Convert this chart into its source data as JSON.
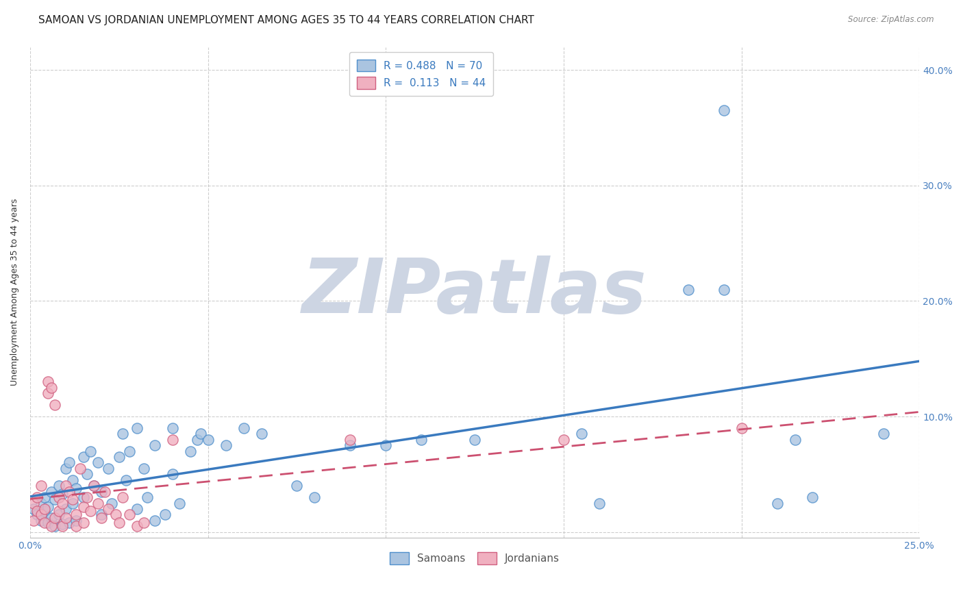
{
  "title": "SAMOAN VS JORDANIAN UNEMPLOYMENT AMONG AGES 35 TO 44 YEARS CORRELATION CHART",
  "source": "Source: ZipAtlas.com",
  "ylabel": "Unemployment Among Ages 35 to 44 years",
  "xlabel": "",
  "xlim": [
    0.0,
    0.25
  ],
  "ylim": [
    -0.005,
    0.42
  ],
  "xticks": [
    0.0,
    0.05,
    0.1,
    0.15,
    0.2,
    0.25
  ],
  "yticks": [
    0.0,
    0.1,
    0.2,
    0.3,
    0.4
  ],
  "background_color": "#ffffff",
  "grid_color": "#c8c8c8",
  "watermark": "ZIPatlas",
  "watermark_color": "#cdd5e3",
  "samoan_color": "#aac4e0",
  "jordanian_color": "#f0b0c0",
  "samoan_edge_color": "#5090cc",
  "jordanian_edge_color": "#d06080",
  "samoan_line_color": "#3a7abf",
  "jordanian_line_color": "#cc5070",
  "legend_R_color": "#3a7abf",
  "R_samoan": 0.488,
  "N_samoan": 70,
  "R_jordanian": 0.113,
  "N_jordanian": 44,
  "samoan_scatter": [
    [
      0.001,
      0.02
    ],
    [
      0.002,
      0.015
    ],
    [
      0.003,
      0.025
    ],
    [
      0.003,
      0.01
    ],
    [
      0.004,
      0.03
    ],
    [
      0.004,
      0.018
    ],
    [
      0.005,
      0.022
    ],
    [
      0.005,
      0.008
    ],
    [
      0.006,
      0.035
    ],
    [
      0.006,
      0.012
    ],
    [
      0.007,
      0.028
    ],
    [
      0.007,
      0.005
    ],
    [
      0.008,
      0.04
    ],
    [
      0.008,
      0.015
    ],
    [
      0.009,
      0.033
    ],
    [
      0.009,
      0.007
    ],
    [
      0.01,
      0.055
    ],
    [
      0.01,
      0.02
    ],
    [
      0.011,
      0.06
    ],
    [
      0.011,
      0.008
    ],
    [
      0.012,
      0.045
    ],
    [
      0.012,
      0.025
    ],
    [
      0.013,
      0.038
    ],
    [
      0.013,
      0.01
    ],
    [
      0.015,
      0.065
    ],
    [
      0.015,
      0.03
    ],
    [
      0.016,
      0.05
    ],
    [
      0.017,
      0.07
    ],
    [
      0.018,
      0.04
    ],
    [
      0.019,
      0.06
    ],
    [
      0.02,
      0.035
    ],
    [
      0.02,
      0.015
    ],
    [
      0.022,
      0.055
    ],
    [
      0.023,
      0.025
    ],
    [
      0.025,
      0.065
    ],
    [
      0.026,
      0.085
    ],
    [
      0.027,
      0.045
    ],
    [
      0.028,
      0.07
    ],
    [
      0.03,
      0.09
    ],
    [
      0.03,
      0.02
    ],
    [
      0.032,
      0.055
    ],
    [
      0.033,
      0.03
    ],
    [
      0.035,
      0.075
    ],
    [
      0.035,
      0.01
    ],
    [
      0.038,
      0.015
    ],
    [
      0.04,
      0.09
    ],
    [
      0.04,
      0.05
    ],
    [
      0.042,
      0.025
    ],
    [
      0.045,
      0.07
    ],
    [
      0.047,
      0.08
    ],
    [
      0.048,
      0.085
    ],
    [
      0.05,
      0.08
    ],
    [
      0.055,
      0.075
    ],
    [
      0.06,
      0.09
    ],
    [
      0.065,
      0.085
    ],
    [
      0.075,
      0.04
    ],
    [
      0.08,
      0.03
    ],
    [
      0.09,
      0.075
    ],
    [
      0.1,
      0.075
    ],
    [
      0.11,
      0.08
    ],
    [
      0.125,
      0.08
    ],
    [
      0.155,
      0.085
    ],
    [
      0.16,
      0.025
    ],
    [
      0.185,
      0.21
    ],
    [
      0.195,
      0.21
    ],
    [
      0.195,
      0.365
    ],
    [
      0.21,
      0.025
    ],
    [
      0.215,
      0.08
    ],
    [
      0.22,
      0.03
    ],
    [
      0.24,
      0.085
    ]
  ],
  "jordanian_scatter": [
    [
      0.001,
      0.01
    ],
    [
      0.001,
      0.025
    ],
    [
      0.002,
      0.03
    ],
    [
      0.002,
      0.018
    ],
    [
      0.003,
      0.015
    ],
    [
      0.003,
      0.04
    ],
    [
      0.004,
      0.02
    ],
    [
      0.004,
      0.008
    ],
    [
      0.005,
      0.13
    ],
    [
      0.005,
      0.12
    ],
    [
      0.006,
      0.125
    ],
    [
      0.006,
      0.005
    ],
    [
      0.007,
      0.11
    ],
    [
      0.007,
      0.012
    ],
    [
      0.008,
      0.03
    ],
    [
      0.008,
      0.018
    ],
    [
      0.009,
      0.025
    ],
    [
      0.009,
      0.005
    ],
    [
      0.01,
      0.04
    ],
    [
      0.01,
      0.012
    ],
    [
      0.011,
      0.035
    ],
    [
      0.012,
      0.028
    ],
    [
      0.013,
      0.015
    ],
    [
      0.013,
      0.005
    ],
    [
      0.014,
      0.055
    ],
    [
      0.015,
      0.022
    ],
    [
      0.015,
      0.008
    ],
    [
      0.016,
      0.03
    ],
    [
      0.017,
      0.018
    ],
    [
      0.018,
      0.04
    ],
    [
      0.019,
      0.025
    ],
    [
      0.02,
      0.012
    ],
    [
      0.021,
      0.035
    ],
    [
      0.022,
      0.02
    ],
    [
      0.024,
      0.015
    ],
    [
      0.025,
      0.008
    ],
    [
      0.026,
      0.03
    ],
    [
      0.028,
      0.015
    ],
    [
      0.03,
      0.005
    ],
    [
      0.032,
      0.008
    ],
    [
      0.04,
      0.08
    ],
    [
      0.09,
      0.08
    ],
    [
      0.15,
      0.08
    ],
    [
      0.2,
      0.09
    ]
  ],
  "title_fontsize": 11,
  "axis_label_fontsize": 9,
  "tick_fontsize": 10,
  "legend_fontsize": 11
}
